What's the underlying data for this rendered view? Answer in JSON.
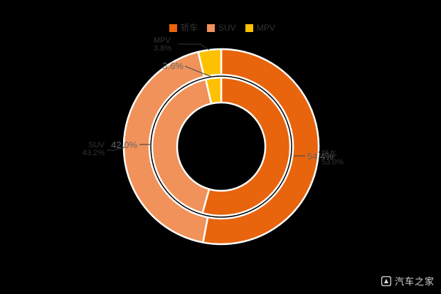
{
  "background_color": "#000000",
  "legend": {
    "items": [
      {
        "label": "轿车",
        "color": "#e8640d"
      },
      {
        "label": "SUV",
        "color": "#f0925a"
      },
      {
        "label": "MPV",
        "color": "#fdc101"
      }
    ]
  },
  "watermark": {
    "text": "汽车之家"
  },
  "chart_data": {
    "type": "pie",
    "subtype": "nested-donut",
    "title": "",
    "legend_position": "top",
    "start_angle": "top-clockwise",
    "categories": [
      "轿车",
      "SUV",
      "MPV"
    ],
    "category_slugs": [
      "sedan",
      "suv",
      "mpv"
    ],
    "colors": [
      "#e8640d",
      "#f0925a",
      "#fdc101"
    ],
    "series": [
      {
        "name": "outer-ring",
        "values": [
          53.0,
          43.2,
          3.8
        ]
      },
      {
        "name": "inner-ring",
        "values": [
          54.4,
          42.0,
          3.6
        ]
      }
    ],
    "labels": {
      "inner": [
        "54.4%",
        "42.0%",
        "3.6%"
      ],
      "outer": [
        {
          "name": "轿车",
          "pct": "53.0%"
        },
        {
          "name": "SUV",
          "pct": "43.2%"
        },
        {
          "name": "MPV",
          "pct": "3.8%"
        }
      ]
    }
  }
}
